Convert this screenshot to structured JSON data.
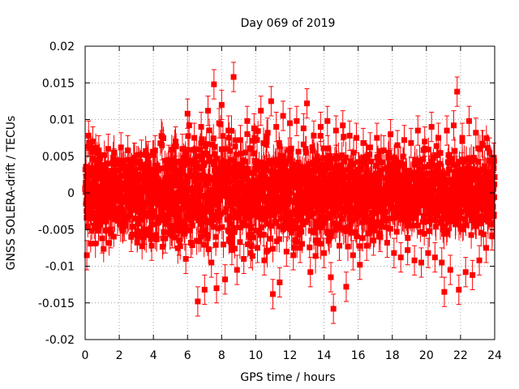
{
  "chart_data": {
    "type": "scatter",
    "title": "Day 069 of 2019",
    "xlabel": "GPS time / hours",
    "ylabel": "GNSS SOLERA-drift / TECUs",
    "xlim": [
      0,
      24
    ],
    "ylim": [
      -0.02,
      0.02
    ],
    "x_ticks": [
      0,
      2,
      4,
      6,
      8,
      10,
      12,
      14,
      16,
      18,
      20,
      22,
      24
    ],
    "y_ticks": [
      -0.02,
      -0.015,
      -0.01,
      -0.005,
      0,
      0.005,
      0.01,
      0.015,
      0.02
    ],
    "x_tick_labels": [
      "0",
      "2",
      "4",
      "6",
      "8",
      "10",
      "12",
      "14",
      "16",
      "18",
      "20",
      "22",
      "24"
    ],
    "y_tick_labels": [
      "-0.02",
      "-0.015",
      "-0.01",
      "-0.005",
      "0",
      "0.005",
      "0.01",
      "0.015",
      "0.02"
    ],
    "grid": true,
    "marker_color": "#ff0000",
    "error_bars": true,
    "series": [
      {
        "points": [
          [
            0.0,
            0.0005,
            0.002
          ],
          [
            0.1,
            -0.0085,
            0.002
          ],
          [
            0.2,
            0.0078,
            0.002
          ],
          [
            0.3,
            -0.0035,
            0.002
          ],
          [
            0.45,
            0.007,
            0.002
          ],
          [
            0.6,
            -0.0048,
            0.002
          ],
          [
            0.8,
            0.0058,
            0.002
          ],
          [
            1.0,
            -0.0062,
            0.002
          ],
          [
            1.2,
            0.0035,
            0.002
          ],
          [
            1.35,
            0.006,
            0.002
          ],
          [
            1.5,
            -0.0055,
            0.002
          ],
          [
            1.7,
            0.004,
            0.002
          ],
          [
            1.9,
            -0.0038,
            0.002
          ],
          [
            2.1,
            0.0062,
            0.002
          ],
          [
            2.3,
            -0.0045,
            0.002
          ],
          [
            2.5,
            0.0058,
            0.002
          ],
          [
            2.7,
            -0.006,
            0.002
          ],
          [
            2.9,
            0.0048,
            0.002
          ],
          [
            3.1,
            -0.0042,
            0.002
          ],
          [
            3.3,
            0.0052,
            0.002
          ],
          [
            3.5,
            -0.005,
            0.002
          ],
          [
            3.7,
            0.005,
            0.002
          ],
          [
            3.9,
            -0.0072,
            0.002
          ],
          [
            4.1,
            0.0058,
            0.002
          ],
          [
            4.3,
            -0.004,
            0.002
          ],
          [
            4.5,
            0.0065,
            0.002
          ],
          [
            4.7,
            -0.0062,
            0.002
          ],
          [
            4.9,
            0.0045,
            0.002
          ],
          [
            5.1,
            -0.0055,
            0.002
          ],
          [
            5.3,
            0.007,
            0.002
          ],
          [
            5.5,
            -0.0065,
            0.002
          ],
          [
            5.7,
            0.006,
            0.002
          ],
          [
            5.9,
            -0.009,
            0.002
          ],
          [
            6.0,
            0.0108,
            0.002
          ],
          [
            6.2,
            -0.0068,
            0.002
          ],
          [
            6.4,
            0.0075,
            0.002
          ],
          [
            6.6,
            -0.0148,
            0.002
          ],
          [
            6.8,
            0.009,
            0.002
          ],
          [
            7.0,
            -0.0132,
            0.002
          ],
          [
            7.2,
            0.0112,
            0.002
          ],
          [
            7.4,
            -0.0095,
            0.002
          ],
          [
            7.55,
            0.0148,
            0.002
          ],
          [
            7.7,
            -0.013,
            0.002
          ],
          [
            7.85,
            0.0095,
            0.002
          ],
          [
            8.0,
            0.012,
            0.002
          ],
          [
            8.2,
            -0.0118,
            0.002
          ],
          [
            8.4,
            0.0085,
            0.002
          ],
          [
            8.6,
            -0.0078,
            0.002
          ],
          [
            8.7,
            0.0158,
            0.002
          ],
          [
            8.9,
            -0.0105,
            0.002
          ],
          [
            9.1,
            0.0072,
            0.002
          ],
          [
            9.3,
            -0.009,
            0.002
          ],
          [
            9.5,
            0.0098,
            0.002
          ],
          [
            9.7,
            -0.0082,
            0.002
          ],
          [
            9.9,
            0.0088,
            0.002
          ],
          [
            10.1,
            -0.0075,
            0.002
          ],
          [
            10.3,
            0.0112,
            0.002
          ],
          [
            10.5,
            -0.0092,
            0.002
          ],
          [
            10.7,
            0.0082,
            0.002
          ],
          [
            10.9,
            0.0125,
            0.002
          ],
          [
            11.0,
            -0.0138,
            0.002
          ],
          [
            11.2,
            0.009,
            0.002
          ],
          [
            11.4,
            -0.0122,
            0.002
          ],
          [
            11.6,
            0.0105,
            0.002
          ],
          [
            11.8,
            -0.008,
            0.002
          ],
          [
            12.0,
            0.0095,
            0.002
          ],
          [
            12.2,
            -0.0085,
            0.002
          ],
          [
            12.4,
            0.0098,
            0.002
          ],
          [
            12.6,
            -0.0075,
            0.002
          ],
          [
            12.8,
            0.0088,
            0.002
          ],
          [
            13.0,
            0.0122,
            0.002
          ],
          [
            13.2,
            -0.0108,
            0.002
          ],
          [
            13.4,
            0.0078,
            0.002
          ],
          [
            13.6,
            -0.0068,
            0.002
          ],
          [
            13.8,
            0.009,
            0.002
          ],
          [
            14.0,
            -0.0082,
            0.002
          ],
          [
            14.2,
            0.0098,
            0.002
          ],
          [
            14.4,
            -0.0115,
            0.002
          ],
          [
            14.55,
            -0.0158,
            0.002
          ],
          [
            14.7,
            0.0085,
            0.002
          ],
          [
            14.9,
            -0.0072,
            0.002
          ],
          [
            15.1,
            0.0092,
            0.002
          ],
          [
            15.3,
            -0.0128,
            0.002
          ],
          [
            15.5,
            0.0078,
            0.002
          ],
          [
            15.7,
            -0.0085,
            0.002
          ],
          [
            15.9,
            0.0075,
            0.002
          ],
          [
            16.1,
            -0.0098,
            0.002
          ],
          [
            16.3,
            0.0068,
            0.002
          ],
          [
            16.5,
            -0.0072,
            0.002
          ],
          [
            16.7,
            0.0062,
            0.002
          ],
          [
            16.9,
            -0.0065,
            0.002
          ],
          [
            17.1,
            0.0075,
            0.002
          ],
          [
            17.3,
            -0.006,
            0.002
          ],
          [
            17.5,
            0.0058,
            0.002
          ],
          [
            17.7,
            -0.0068,
            0.002
          ],
          [
            17.9,
            0.008,
            0.002
          ],
          [
            18.1,
            -0.0082,
            0.002
          ],
          [
            18.3,
            0.0065,
            0.002
          ],
          [
            18.5,
            -0.0088,
            0.002
          ],
          [
            18.7,
            0.0072,
            0.002
          ],
          [
            18.9,
            -0.0078,
            0.002
          ],
          [
            19.1,
            0.0068,
            0.002
          ],
          [
            19.3,
            -0.0092,
            0.002
          ],
          [
            19.5,
            0.0085,
            0.002
          ],
          [
            19.7,
            -0.0095,
            0.002
          ],
          [
            19.9,
            0.007,
            0.002
          ],
          [
            20.1,
            -0.0082,
            0.002
          ],
          [
            20.3,
            0.009,
            0.002
          ],
          [
            20.5,
            -0.0088,
            0.002
          ],
          [
            20.7,
            0.0075,
            0.002
          ],
          [
            20.9,
            -0.0095,
            0.002
          ],
          [
            21.05,
            -0.0135,
            0.002
          ],
          [
            21.2,
            0.0085,
            0.002
          ],
          [
            21.4,
            -0.0105,
            0.002
          ],
          [
            21.6,
            0.0092,
            0.002
          ],
          [
            21.8,
            0.0138,
            0.002
          ],
          [
            21.9,
            -0.0132,
            0.002
          ],
          [
            22.1,
            0.0075,
            0.002
          ],
          [
            22.3,
            -0.0108,
            0.002
          ],
          [
            22.5,
            0.0098,
            0.002
          ],
          [
            22.7,
            -0.0112,
            0.002
          ],
          [
            22.9,
            0.0082,
            0.002
          ],
          [
            23.1,
            -0.0092,
            0.002
          ],
          [
            23.3,
            0.0065,
            0.002
          ],
          [
            23.5,
            -0.0075,
            0.002
          ],
          [
            23.7,
            0.0055,
            0.002
          ],
          [
            23.85,
            -0.0058,
            0.002
          ],
          [
            23.95,
            0.0048,
            0.002
          ]
        ]
      }
    ]
  }
}
